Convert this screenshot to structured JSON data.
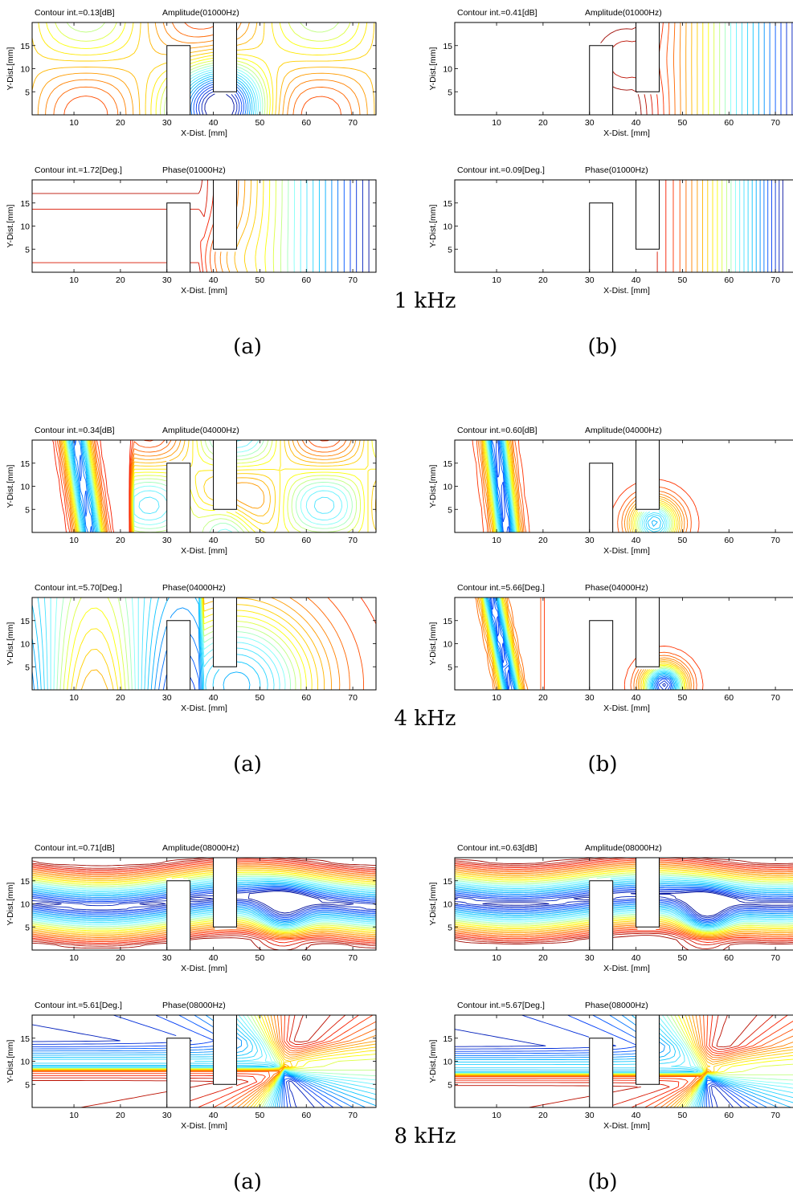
{
  "axes": {
    "xlabel": "X-Dist. [mm]",
    "ylabel": "Y-Dist.[mm]",
    "xticks": [
      10,
      20,
      30,
      40,
      50,
      60,
      70
    ],
    "yticks": [
      5,
      10,
      15
    ],
    "xlim": [
      1,
      75
    ],
    "ylim": [
      0,
      20
    ]
  },
  "geometry": {
    "lower_baffle": {
      "x": [
        30,
        35
      ],
      "y": [
        0,
        15
      ]
    },
    "upper_baffle": {
      "x": [
        40,
        45
      ],
      "y": [
        5,
        20
      ]
    }
  },
  "groups": [
    {
      "freq_label": "1 kHz",
      "col_labels": [
        "(a)",
        "(b)"
      ],
      "panels": [
        [
          {
            "contour": "Contour int.=0.13[dB]",
            "title": "Amplitude(01000Hz)",
            "pattern": "amp1a"
          },
          {
            "contour": "Contour int.=0.41[dB]",
            "title": "Amplitude(01000Hz)",
            "pattern": "amp1b"
          }
        ],
        [
          {
            "contour": "Contour int.=1.72[Deg.]",
            "title": "Phase(01000Hz)",
            "pattern": "ph1a"
          },
          {
            "contour": "Contour int.=0.09[Deg.]",
            "title": "Phase(01000Hz)",
            "pattern": "ph1b"
          }
        ]
      ]
    },
    {
      "freq_label": "4 kHz",
      "col_labels": [
        "(a)",
        "(b)"
      ],
      "panels": [
        [
          {
            "contour": "Contour int.=0.34[dB]",
            "title": "Amplitude(04000Hz)",
            "pattern": "amp4a"
          },
          {
            "contour": "Contour int.=0.60[dB]",
            "title": "Amplitude(04000Hz)",
            "pattern": "amp4b"
          }
        ],
        [
          {
            "contour": "Contour int.=5.70[Deg.]",
            "title": "Phase(04000Hz)",
            "pattern": "ph4a"
          },
          {
            "contour": "Contour int.=5.66[Deg.]",
            "title": "Phase(04000Hz)",
            "pattern": "ph4b"
          }
        ]
      ]
    },
    {
      "freq_label": "8 kHz",
      "col_labels": [
        "(a)",
        "(b)"
      ],
      "panels": [
        [
          {
            "contour": "Contour int.=0.71[dB]",
            "title": "Amplitude(08000Hz)",
            "pattern": "amp8a"
          },
          {
            "contour": "Contour int.=0.63[dB]",
            "title": "Amplitude(08000Hz)",
            "pattern": "amp8b"
          }
        ],
        [
          {
            "contour": "Contour int.=5.61[Deg.]",
            "title": "Phase(08000Hz)",
            "pattern": "ph8a"
          },
          {
            "contour": "Contour int.=5.67[Deg.]",
            "title": "Phase(08000Hz)",
            "pattern": "ph8b"
          }
        ]
      ]
    }
  ],
  "colormap": [
    "#00007f",
    "#0040ff",
    "#00c0ff",
    "#80ffff",
    "#ffff00",
    "#ff9000",
    "#ff2000",
    "#800000"
  ]
}
